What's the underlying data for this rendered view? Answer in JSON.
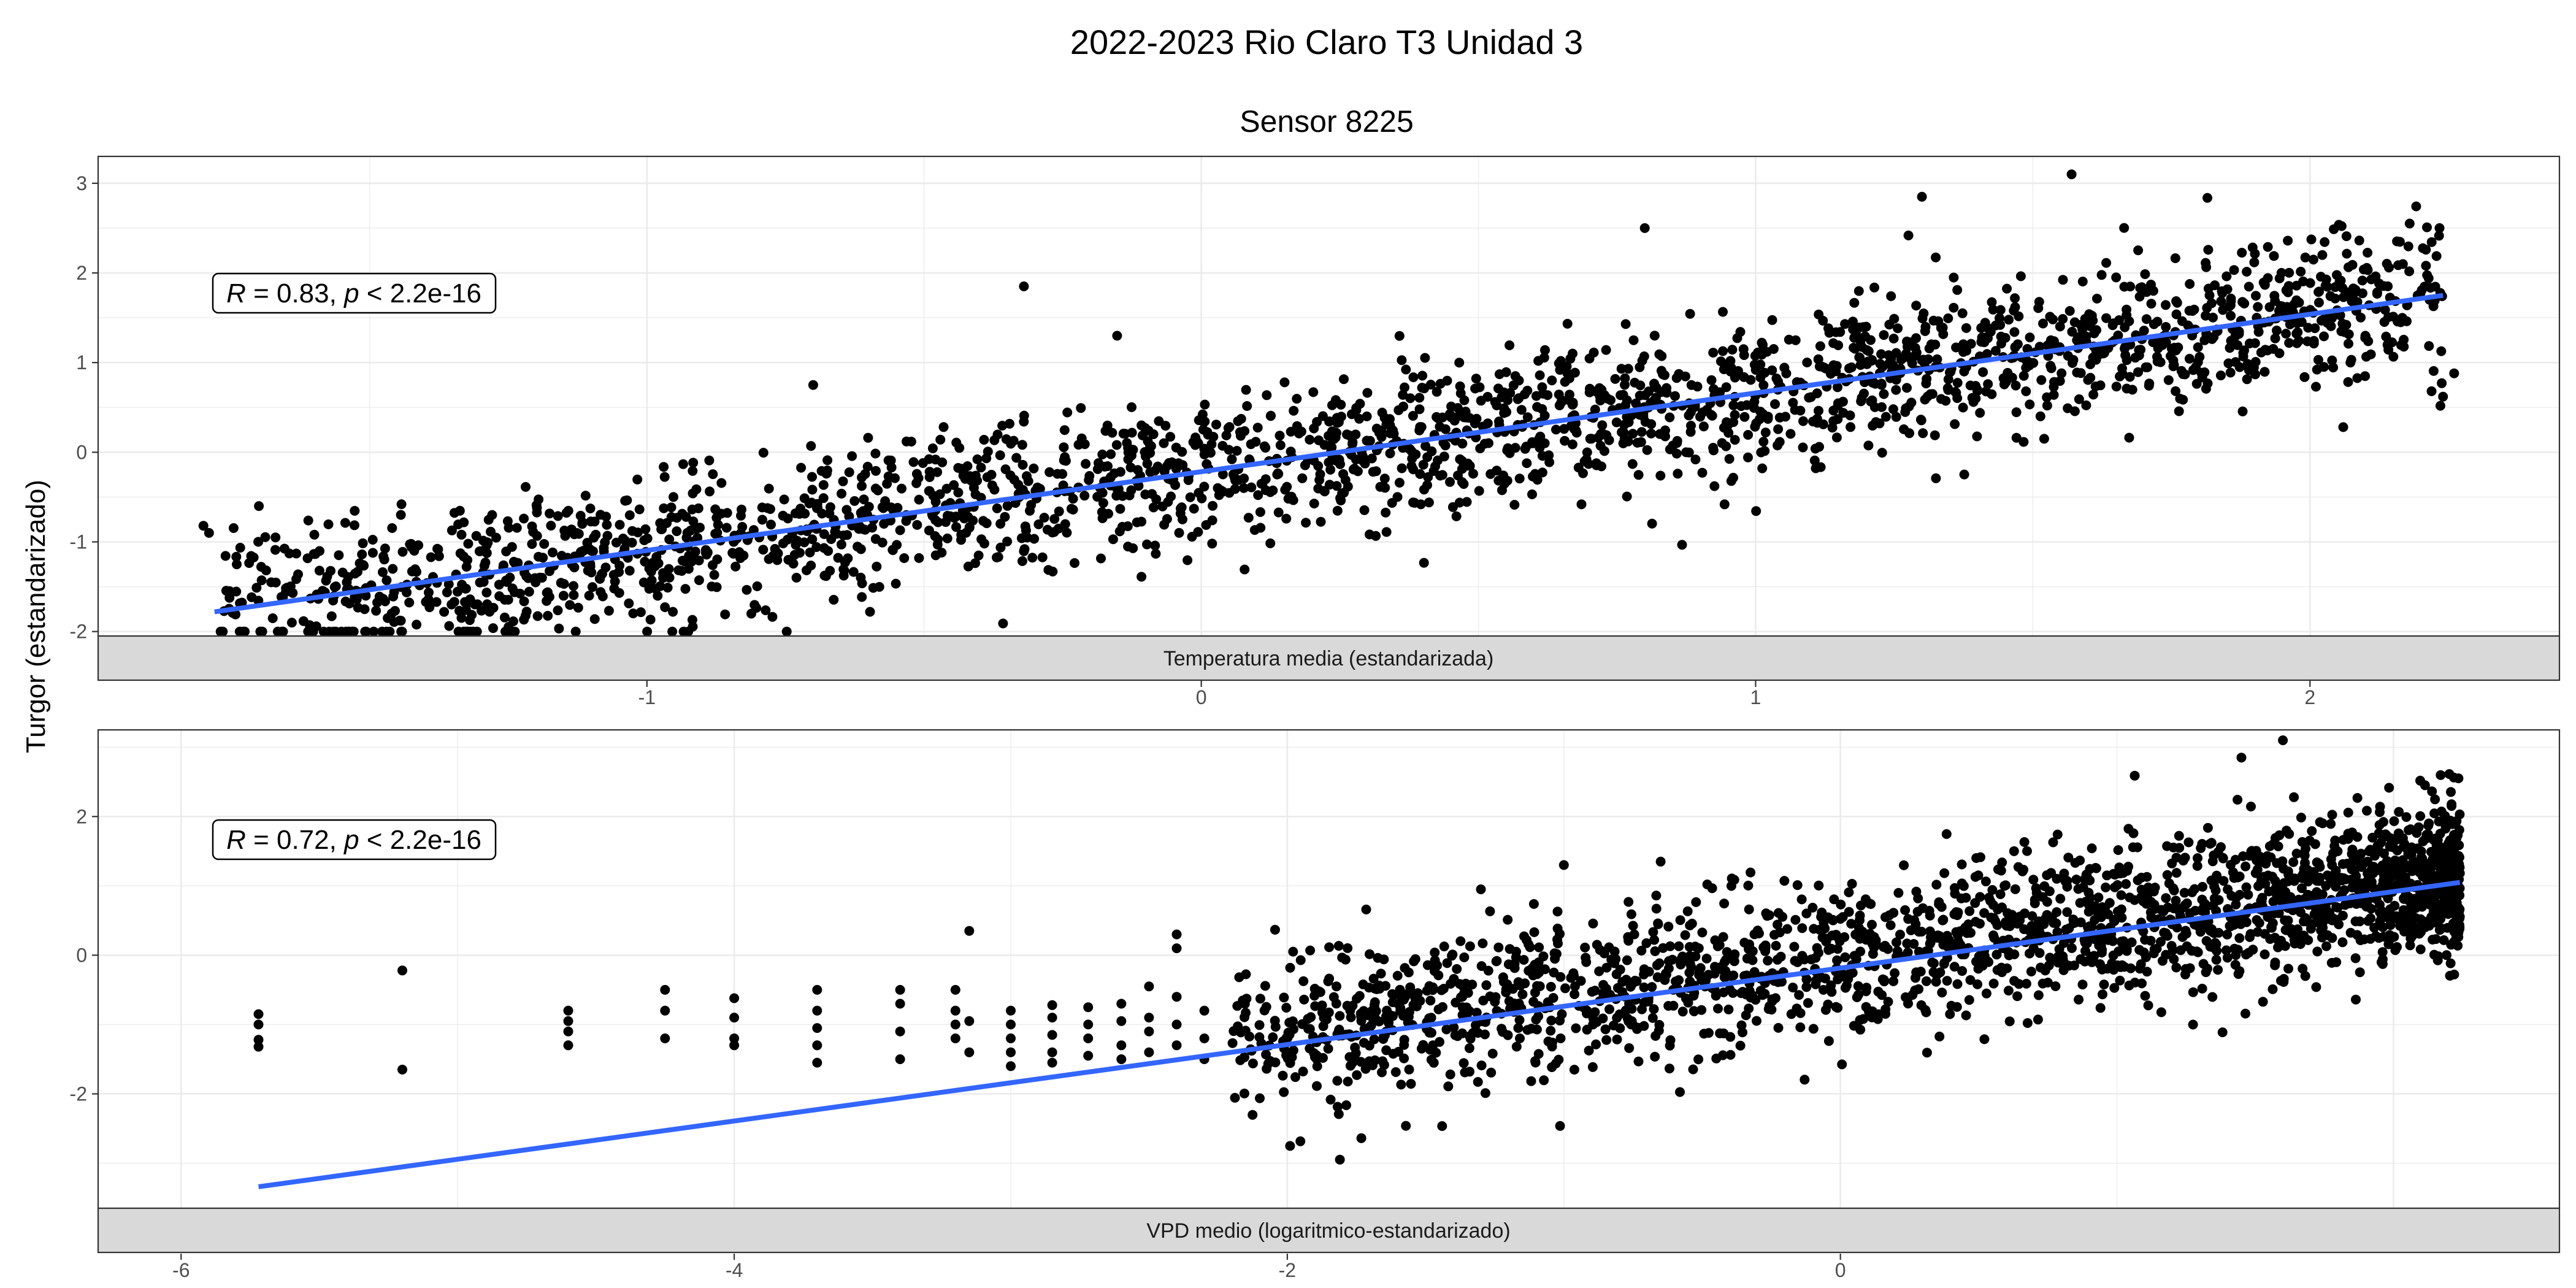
{
  "chart_data": {
    "type": "scatter",
    "title": "2022-2023 Rio Claro T3 Unidad 3",
    "subtitle": "Sensor 8225",
    "ylabel": "Turgor (estandarizado)",
    "grid": true,
    "point_color": "#000000",
    "line_color": "#3366ff",
    "panels": [
      {
        "strip_label": "Temperatura media (estandarizada)",
        "xlim": [
          -1.99,
          2.45
        ],
        "ylim": [
          -2.05,
          3.3
        ],
        "x_ticks": [
          -1,
          0,
          1,
          2
        ],
        "y_ticks": [
          -2,
          -1,
          0,
          1,
          2,
          3
        ],
        "annotation": {
          "r_label": "R",
          "r_text": " = 0.83, ",
          "p_label": "p",
          "p_text": " < 2.2e-16"
        },
        "fit_line": {
          "x": [
            -1.78,
            2.24
          ],
          "y": [
            -1.78,
            1.75
          ]
        },
        "trend": {
          "x_min": -1.78,
          "x_max": 2.24,
          "slope": 0.88,
          "intercept": -0.21,
          "noise_sd": 0.42,
          "n": 2400,
          "seed": 11
        },
        "outliers": [
          {
            "x": -1.8,
            "y": -0.82
          },
          {
            "x": -1.79,
            "y": -0.9
          },
          {
            "x": -1.74,
            "y": -1.25
          },
          {
            "x": -1.7,
            "y": -0.6
          },
          {
            "x": -1.67,
            "y": -0.95
          },
          {
            "x": -1.6,
            "y": -0.92
          },
          {
            "x": -0.32,
            "y": 1.85
          },
          {
            "x": 1.57,
            "y": 3.1
          },
          {
            "x": 1.3,
            "y": 2.85
          },
          {
            "x": 2.06,
            "y": 0.28
          },
          {
            "x": 2.24,
            "y": 0.62
          },
          {
            "x": 2.26,
            "y": 0.88
          },
          {
            "x": 0.8,
            "y": 2.5
          },
          {
            "x": -0.7,
            "y": 0.75
          }
        ]
      },
      {
        "strip_label": "VPD medio (logaritmico-estandarizado)",
        "xlim": [
          -6.3,
          2.6
        ],
        "ylim": [
          -3.65,
          3.25
        ],
        "x_ticks": [
          -6,
          -4,
          -2,
          0
        ],
        "y_ticks": [
          -2,
          0,
          2
        ],
        "annotation": {
          "r_label": "R",
          "r_text": " = 0.72, ",
          "p_label": "p",
          "p_text": " < 2.2e-16"
        },
        "fit_line": {
          "x": [
            -5.72,
            2.24
          ],
          "y": [
            -3.34,
            1.05
          ]
        },
        "trend": {
          "x_min": -2.2,
          "x_max": 2.24,
          "slope": 0.53,
          "intercept": -0.05,
          "noise_sd": 0.55,
          "n": 2200,
          "seed": 23
        },
        "sparse_columns": [
          {
            "x": -5.72,
            "y": [
              -0.85,
              -1.0,
              -1.22,
              -1.32
            ]
          },
          {
            "x": -5.2,
            "y": [
              -0.22,
              -1.65
            ]
          },
          {
            "x": -4.6,
            "y": [
              -0.8,
              -0.95,
              -1.1,
              -1.3
            ]
          },
          {
            "x": -4.25,
            "y": [
              -0.5,
              -0.8,
              -1.2
            ]
          },
          {
            "x": -4.0,
            "y": [
              -0.62,
              -0.9,
              -1.2,
              -1.3
            ]
          },
          {
            "x": -3.7,
            "y": [
              -0.5,
              -0.8,
              -1.05,
              -1.3,
              -1.55
            ]
          },
          {
            "x": -3.4,
            "y": [
              -0.5,
              -0.7,
              -1.1,
              -1.5
            ]
          },
          {
            "x": -3.2,
            "y": [
              -0.5,
              -0.8,
              -1.0,
              -1.2
            ]
          },
          {
            "x": -3.15,
            "y": [
              0.35,
              -0.95,
              -1.4
            ]
          },
          {
            "x": -3.0,
            "y": [
              -0.8,
              -1.0,
              -1.2,
              -1.4,
              -1.6
            ]
          },
          {
            "x": -2.85,
            "y": [
              -0.72,
              -0.9,
              -1.15,
              -1.4,
              -1.55
            ]
          },
          {
            "x": -2.72,
            "y": [
              -0.75,
              -1.0,
              -1.2,
              -1.45
            ]
          },
          {
            "x": -2.6,
            "y": [
              -0.7,
              -0.95,
              -1.3,
              -1.5
            ]
          },
          {
            "x": -2.5,
            "y": [
              -0.45,
              -0.9,
              -1.1,
              -1.4
            ]
          },
          {
            "x": -2.4,
            "y": [
              0.3,
              0.1,
              -0.6,
              -1.0,
              -1.3
            ]
          },
          {
            "x": -2.3,
            "y": [
              -0.8,
              -1.2,
              -1.5
            ]
          }
        ],
        "outliers": [
          {
            "x": 1.6,
            "y": 3.1
          },
          {
            "x": 1.45,
            "y": 2.85
          },
          {
            "x": -1.0,
            "y": 1.3
          },
          {
            "x": -0.65,
            "y": 1.35
          },
          {
            "x": -1.3,
            "y": 0.95
          }
        ]
      }
    ]
  }
}
